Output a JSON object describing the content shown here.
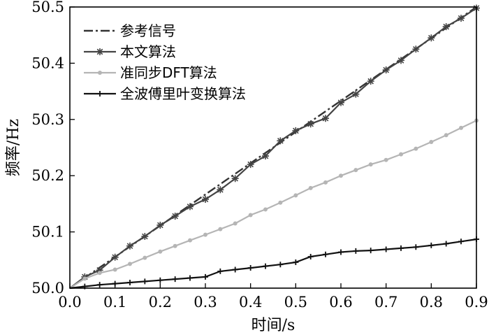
{
  "chart_data": {
    "type": "line",
    "xlabel": "时间/s",
    "ylabel": "频率/Hz",
    "xlim": [
      0.0,
      0.9
    ],
    "ylim": [
      50.0,
      50.5
    ],
    "xticks": [
      "0.0",
      "0.1",
      "0.2",
      "0.3",
      "0.4",
      "0.5",
      "0.6",
      "0.7",
      "0.8",
      "0.9"
    ],
    "yticks": [
      "50.0",
      "50.1",
      "50.2",
      "50.3",
      "50.4",
      "50.5"
    ],
    "grid": false,
    "legend_position": "top-left",
    "series": [
      {
        "name": "参考信号",
        "color": "#333333",
        "style": "dashdot",
        "marker": "none",
        "x": [
          0.0,
          0.9
        ],
        "y": [
          50.0,
          50.5
        ]
      },
      {
        "name": "本文算法",
        "color": "#444444",
        "style": "solid",
        "marker": "star",
        "x": [
          0.0,
          0.033,
          0.066,
          0.1,
          0.133,
          0.166,
          0.2,
          0.233,
          0.266,
          0.3,
          0.333,
          0.366,
          0.4,
          0.433,
          0.466,
          0.5,
          0.533,
          0.566,
          0.6,
          0.633,
          0.666,
          0.7,
          0.733,
          0.766,
          0.8,
          0.833,
          0.866,
          0.9
        ],
        "y": [
          50.0,
          50.02,
          50.032,
          50.055,
          50.075,
          50.092,
          50.112,
          50.128,
          50.145,
          50.158,
          50.175,
          50.195,
          50.22,
          50.235,
          50.262,
          50.28,
          50.292,
          50.302,
          50.33,
          50.345,
          50.368,
          50.388,
          50.405,
          50.425,
          50.445,
          50.465,
          50.48,
          50.498
        ]
      },
      {
        "name": "准同步DFT算法",
        "color": "#b5b5b5",
        "style": "solid",
        "marker": "dot",
        "x": [
          0.0,
          0.033,
          0.066,
          0.1,
          0.133,
          0.166,
          0.2,
          0.233,
          0.266,
          0.3,
          0.333,
          0.366,
          0.4,
          0.433,
          0.466,
          0.5,
          0.533,
          0.566,
          0.6,
          0.633,
          0.666,
          0.7,
          0.733,
          0.766,
          0.8,
          0.833,
          0.866,
          0.9
        ],
        "y": [
          50.0,
          50.017,
          50.027,
          50.033,
          50.043,
          50.054,
          50.065,
          50.075,
          50.085,
          50.095,
          50.105,
          50.115,
          50.13,
          50.14,
          50.152,
          50.165,
          50.178,
          50.188,
          50.2,
          50.21,
          50.22,
          50.228,
          50.238,
          50.248,
          50.26,
          50.272,
          50.285,
          50.298
        ]
      },
      {
        "name": "全波傅里叶变换算法",
        "color": "#111111",
        "style": "solid",
        "marker": "plus",
        "x": [
          0.0,
          0.033,
          0.066,
          0.1,
          0.133,
          0.166,
          0.2,
          0.233,
          0.266,
          0.3,
          0.333,
          0.366,
          0.4,
          0.433,
          0.466,
          0.5,
          0.533,
          0.566,
          0.6,
          0.633,
          0.666,
          0.7,
          0.733,
          0.766,
          0.8,
          0.833,
          0.866,
          0.9
        ],
        "y": [
          50.0,
          50.003,
          50.006,
          50.008,
          50.01,
          50.012,
          50.014,
          50.016,
          50.018,
          50.02,
          50.03,
          50.033,
          50.036,
          50.039,
          50.042,
          50.046,
          50.056,
          50.06,
          50.064,
          50.066,
          50.067,
          50.069,
          50.071,
          50.073,
          50.076,
          50.079,
          50.083,
          50.087
        ]
      }
    ]
  }
}
